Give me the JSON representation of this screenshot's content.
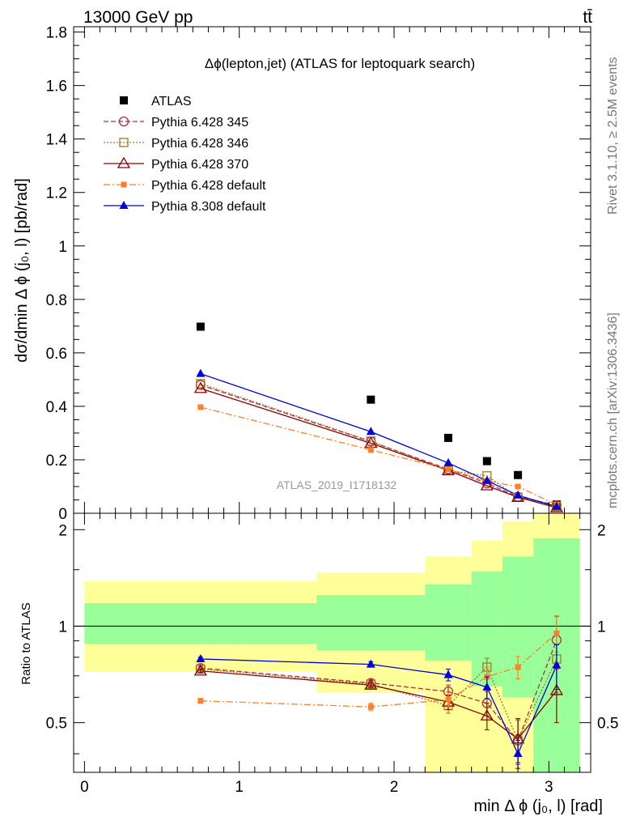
{
  "header": {
    "energy_label": "13000 GeV pp",
    "process_label": "tt̄",
    "rivet_label": "Rivet 3.1.10, ≥ 2.5M events",
    "mcplots_label": "mcplots.cern.ch [arXiv:1306.3436]",
    "analysis_label": "ATLAS_2019_I1718132"
  },
  "colors": {
    "data": "#000000",
    "pythia6_345": "#b03040",
    "pythia6_346": "#9a7a28",
    "pythia6_370": "#8b0000",
    "pythia6_default": "#ff7f2a",
    "pythia8_default": "#0000dd",
    "band_inner": "#99ff99",
    "band_outer": "#ffff99"
  },
  "chart_data": [
    {
      "type": "line",
      "title": "Δϕ(lepton,jet) (ATLAS for leptoquark search)",
      "ylabel": "dσ/dmin Δ ϕ (j₀, l) [pb/rad]",
      "xlabel": "",
      "xlim": [
        -0.07,
        3.27
      ],
      "ylim": [
        0,
        1.82
      ],
      "yticks": [
        "0",
        "0.2",
        "0.4",
        "0.6",
        "0.8",
        "1",
        "1.2",
        "1.4",
        "1.6",
        "1.8"
      ],
      "legend_position": "top-left",
      "x": [
        0.75,
        1.85,
        2.35,
        2.6,
        2.8,
        3.05
      ],
      "series": [
        {
          "name": "ATLAS",
          "values": [
            0.698,
            0.425,
            0.282,
            0.195,
            0.143,
            0.033
          ]
        },
        {
          "name": "Pythia 6.428 345",
          "values": [
            0.48,
            0.268,
            0.165,
            0.112,
            0.062,
            0.03
          ]
        },
        {
          "name": "Pythia 6.428 346",
          "values": [
            0.485,
            0.27,
            0.16,
            0.14,
            0.06,
            0.026
          ]
        },
        {
          "name": "Pythia 6.428 370",
          "values": [
            0.467,
            0.262,
            0.16,
            0.103,
            0.06,
            0.021
          ]
        },
        {
          "name": "Pythia 6.428 default",
          "values": [
            0.397,
            0.237,
            0.165,
            0.12,
            0.1,
            0.032
          ]
        },
        {
          "name": "Pythia 8.308 default",
          "values": [
            0.522,
            0.305,
            0.188,
            0.122,
            0.067,
            0.025
          ]
        }
      ]
    },
    {
      "type": "line",
      "title": "",
      "ylabel": "Ratio to ATLAS",
      "xlabel": "min Δ ϕ (j₀, l) [rad]",
      "xlim": [
        -0.07,
        3.27
      ],
      "ylim": [
        0.35,
        2.25
      ],
      "xticks": [
        "0",
        "1",
        "2",
        "3"
      ],
      "yticks": [
        "0.5",
        "1",
        "2"
      ],
      "bands": {
        "edges": [
          0,
          1.5,
          2.2,
          2.5,
          2.7,
          2.9,
          3.2
        ],
        "inner_low": [
          0.88,
          0.84,
          0.78,
          0.65,
          0.6,
          0.35
        ],
        "inner_high": [
          1.18,
          1.25,
          1.35,
          1.48,
          1.65,
          1.88
        ],
        "outer_low": [
          0.72,
          0.62,
          0.35,
          0.35,
          0.35,
          0.35
        ],
        "outer_high": [
          1.38,
          1.47,
          1.65,
          1.85,
          2.12,
          2.35
        ]
      },
      "x": [
        0.75,
        1.85,
        2.35,
        2.6,
        2.8,
        3.05
      ],
      "series": [
        {
          "name": "Pythia 6.428 345",
          "values": [
            0.74,
            0.665,
            0.625,
            0.575,
            0.44,
            0.905
          ],
          "errors": [
            0.01,
            0.01,
            0.03,
            0.05,
            0.07,
            0.17
          ]
        },
        {
          "name": "Pythia 6.428 346",
          "values": [
            0.735,
            0.66,
            0.565,
            0.745,
            0.44,
            0.79
          ],
          "errors": [
            0.01,
            0.01,
            0.03,
            0.05,
            0.07,
            0.17
          ]
        },
        {
          "name": "Pythia 6.428 370",
          "values": [
            0.725,
            0.655,
            0.58,
            0.525,
            0.445,
            0.63
          ],
          "errors": [
            0.01,
            0.01,
            0.03,
            0.05,
            0.07,
            0.13
          ]
        },
        {
          "name": "Pythia 6.428 default",
          "values": [
            0.585,
            0.56,
            0.59,
            0.695,
            0.745,
            0.95
          ],
          "errors": [
            0.01,
            0.015,
            0.03,
            0.05,
            0.06,
            0.12
          ]
        },
        {
          "name": "Pythia 8.308 default",
          "values": [
            0.79,
            0.76,
            0.705,
            0.645,
            0.4,
            0.755
          ],
          "errors": [
            0.01,
            0.015,
            0.03,
            0.05,
            0.04,
            0.12
          ]
        }
      ]
    }
  ]
}
